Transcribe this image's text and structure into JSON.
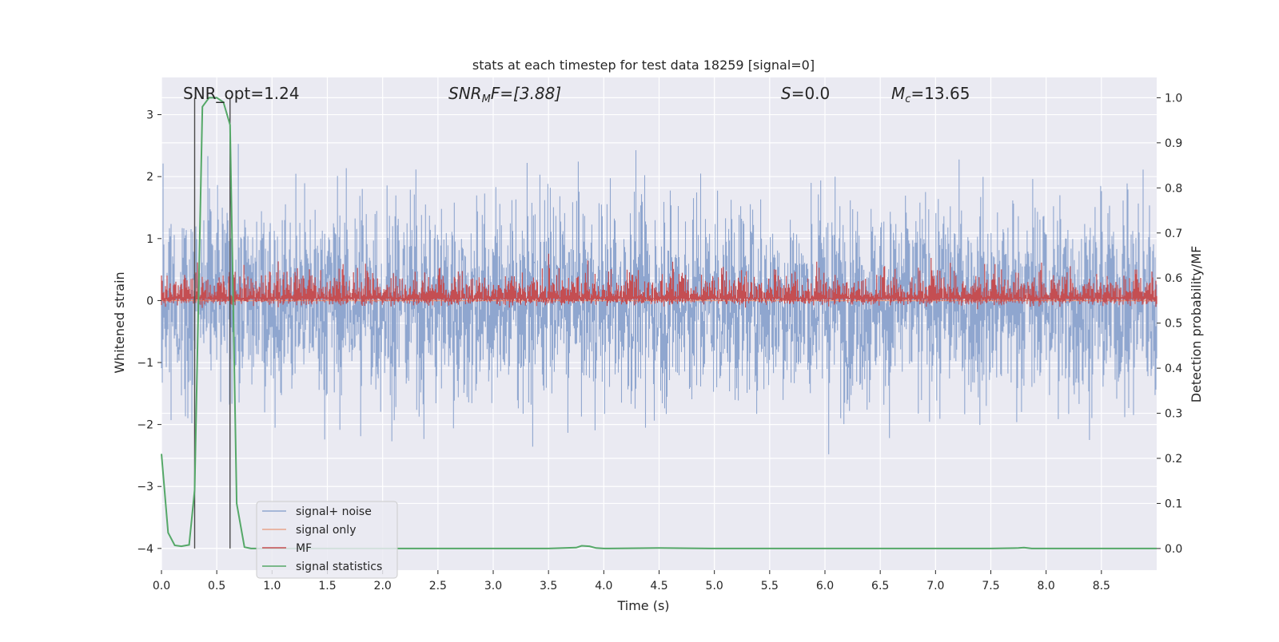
{
  "chart_data": {
    "type": "line",
    "title": "stats at each timestep for test data 18259 [signal=0]",
    "xlabel": "Time (s)",
    "ylabel": "Whitened strain",
    "ylabel_right": "Detection probability/MF",
    "xlim": [
      0.0,
      9.0
    ],
    "ylim": [
      -4.35,
      3.6
    ],
    "ylim_right": [
      -0.048,
      1.045
    ],
    "x_ticks": [
      0.0,
      0.5,
      1.0,
      1.5,
      2.0,
      2.5,
      3.0,
      3.5,
      4.0,
      4.5,
      5.0,
      5.5,
      6.0,
      6.5,
      7.0,
      7.5,
      8.0,
      8.5
    ],
    "x_tick_labels": [
      "0.0",
      "0.5",
      "1.0",
      "1.5",
      "2.0",
      "2.5",
      "3.0",
      "3.5",
      "4.0",
      "4.5",
      "5.0",
      "5.5",
      "6.0",
      "6.5",
      "7.0",
      "7.5",
      "8.0",
      "8.5"
    ],
    "y_ticks": [
      -4,
      -3,
      -2,
      -1,
      0,
      1,
      2,
      3
    ],
    "y_tick_labels": [
      "−4",
      "−3",
      "−2",
      "−1",
      "0",
      "1",
      "2",
      "3"
    ],
    "y_right_ticks": [
      0.0,
      0.1,
      0.2,
      0.3,
      0.4,
      0.5,
      0.6,
      0.7,
      0.8,
      0.9,
      1.0
    ],
    "y_right_tick_labels": [
      "0.0",
      "0.1",
      "0.2",
      "0.3",
      "0.4",
      "0.5",
      "0.6",
      "0.7",
      "0.8",
      "0.9",
      "1.0"
    ],
    "grid": true,
    "legend_position": "lower-left",
    "annotations": {
      "snr_opt": "SNR_opt=1.24",
      "snr_mf_italic": "SNR",
      "snr_mf_sub": "M",
      "snr_mf_tail": "F=[3.88]",
      "s_label_italic": "S",
      "s_label_tail": "=0.0",
      "mc_label_italic": "M",
      "mc_label_sub": "c",
      "mc_label_tail": "=13.65"
    },
    "vertical_markers": [
      0.3,
      0.62
    ],
    "series": [
      {
        "name": "signal+ noise",
        "color": "#8fa6cf",
        "axis": "left",
        "description_range": [
          -4.0,
          3.25
        ]
      },
      {
        "name": "signal only",
        "color": "#e8a58b",
        "axis": "left",
        "values_constant": 0.0
      },
      {
        "name": "MF",
        "color": "#c44e52",
        "axis": "right",
        "baseline": 0.555,
        "peak": 0.7
      },
      {
        "name": "signal statistics",
        "color": "#55a868",
        "axis": "right",
        "x": [
          0.0,
          0.06,
          0.12,
          0.18,
          0.25,
          0.3,
          0.37,
          0.43,
          0.5,
          0.56,
          0.62,
          0.68,
          0.75,
          0.81,
          0.87,
          1.0,
          1.5,
          2.0,
          2.5,
          3.0,
          3.5,
          3.75,
          3.8,
          3.87,
          3.93,
          4.0,
          4.5,
          5.0,
          5.5,
          6.0,
          6.5,
          7.0,
          7.5,
          7.75,
          7.8,
          7.87,
          8.0,
          8.5,
          9.0
        ],
        "y": [
          0.21,
          0.035,
          0.007,
          0.005,
          0.008,
          0.13,
          0.98,
          1.0,
          1.0,
          0.99,
          0.94,
          0.1,
          0.003,
          0.0,
          0.0,
          0.0,
          0.0,
          0.0,
          0.0,
          0.0,
          0.0,
          0.002,
          0.006,
          0.005,
          0.001,
          0.0,
          0.001,
          0.0,
          0.0,
          0.0,
          0.0,
          0.0,
          0.0,
          0.001,
          0.002,
          0.0,
          0.0,
          0.0,
          0.0
        ]
      }
    ]
  },
  "colors": {
    "axes_bg": "#eaeaf2",
    "grid": "#ffffff",
    "noise": "#8fa6cf",
    "signal": "#e8a58b",
    "mf": "#c44e52",
    "stat": "#55a868",
    "marker": "#4a4a4a"
  }
}
